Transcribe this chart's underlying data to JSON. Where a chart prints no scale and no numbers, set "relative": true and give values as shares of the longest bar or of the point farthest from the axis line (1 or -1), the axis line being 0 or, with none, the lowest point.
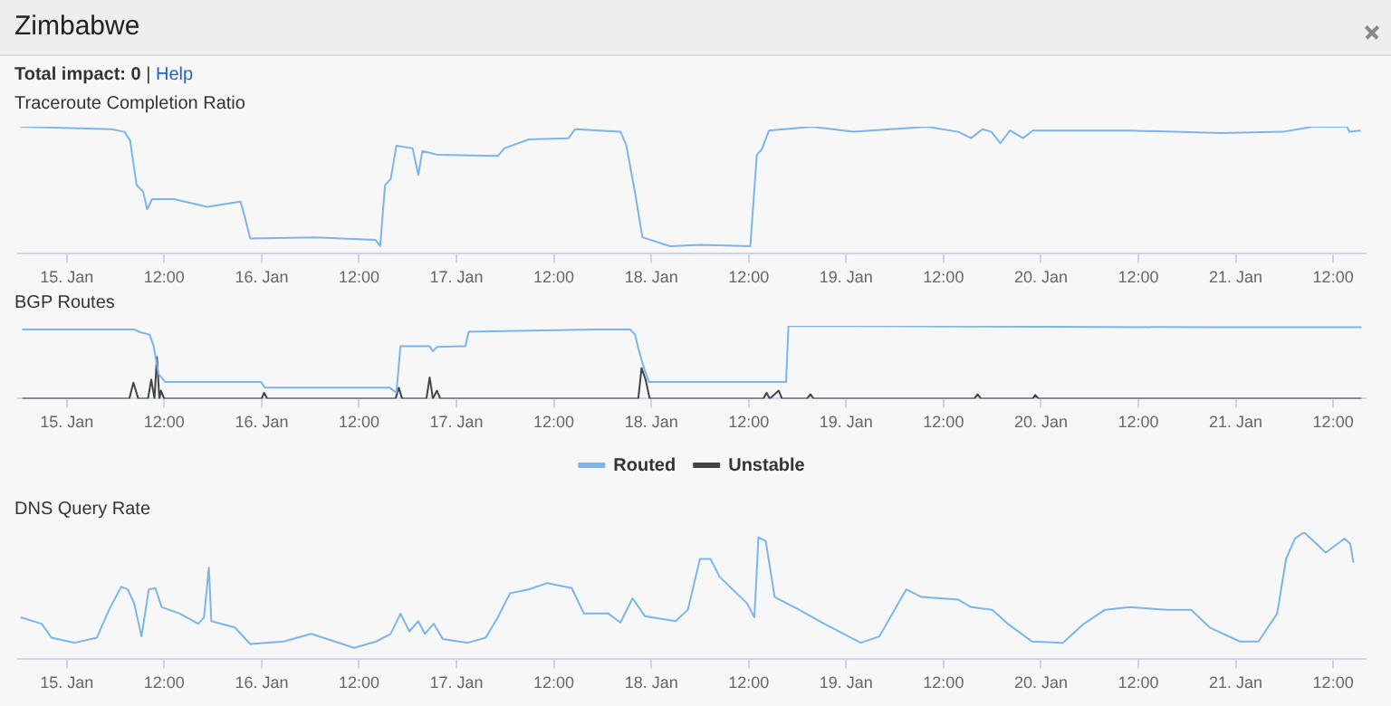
{
  "chart_data": [
    {
      "type": "other",
      "title": "Zimbabwe",
      "annotations": [
        "Total impact: 0",
        "|",
        "Help"
      ]
    },
    {
      "type": "line",
      "title": "Traceroute Completion Ratio",
      "relative": true,
      "grid": false,
      "legend": false,
      "marker": "none",
      "xlim": [
        "--01-14T18:00",
        "--01-21T16:00"
      ],
      "xticks": [
        {
          "value": "--01-15T00:00",
          "label": "15. Jan"
        },
        {
          "value": "--01-15T12:00",
          "label": "12:00"
        },
        {
          "value": "--01-16T00:00",
          "label": "16. Jan"
        },
        {
          "value": "--01-16T12:00",
          "label": "12:00"
        },
        {
          "value": "--01-17T00:00",
          "label": "17. Jan"
        },
        {
          "value": "--01-17T12:00",
          "label": "12:00"
        },
        {
          "value": "--01-18T00:00",
          "label": "18. Jan"
        },
        {
          "value": "--01-18T12:00",
          "label": "12:00"
        },
        {
          "value": "--01-19T00:00",
          "label": "19. Jan"
        },
        {
          "value": "--01-19T12:00",
          "label": "12:00"
        },
        {
          "value": "--01-20T00:00",
          "label": "20. Jan"
        },
        {
          "value": "--01-20T12:00",
          "label": "12:00"
        },
        {
          "value": "--01-21T00:00",
          "label": "21. Jan"
        },
        {
          "value": "--01-21T12:00",
          "label": "12:00"
        }
      ],
      "series": [
        {
          "color": "#7cb5ec",
          "x": [
            "--01-14T18:18",
            "--01-15T05:30",
            "--01-15T07:06",
            "--01-15T07:48",
            "--01-15T08:36",
            "--01-15T09:24",
            "--01-15T09:54",
            "--01-15T10:30",
            "--01-15T13:12",
            "--01-15T17:18",
            "--01-15T21:24",
            "--01-15T21:48",
            "--01-15T22:36",
            "--01-16T06:30",
            "--01-16T14:00",
            "--01-16T14:36",
            "--01-16T15:12",
            "--01-16T15:54",
            "--01-16T16:36",
            "--01-16T18:36",
            "--01-16T19:18",
            "--01-16T19:48",
            "--01-16T21:36",
            "--01-17T05:06",
            "--01-17T05:54",
            "--01-17T08:54",
            "--01-17T13:48",
            "--01-17T14:36",
            "--01-17T20:12",
            "--01-17T20:54",
            "--01-17T22:00",
            "--01-17T22:54",
            "--01-18T02:18",
            "--01-18T06:00",
            "--01-18T12:12",
            "--01-18T13:00",
            "--01-18T13:36",
            "--01-18T14:30",
            "--01-18T19:48",
            "--01-19T00:54",
            "--01-19T10:00",
            "--01-19T13:48",
            "--01-19T15:24",
            "--01-19T16:48",
            "--01-19T17:54",
            "--01-19T19:00",
            "--01-19T20:12",
            "--01-19T21:48",
            "--01-19T23:00",
            "--01-20T10:54",
            "--01-20T22:12",
            "--01-21T05:48",
            "--01-21T09:30",
            "--01-21T13:42",
            "--01-21T14:00",
            "--01-21T15:24"
          ],
          "values": [
            1.0,
            0.98,
            0.96,
            0.89,
            0.54,
            0.49,
            0.35,
            0.43,
            0.43,
            0.37,
            0.41,
            0.32,
            0.12,
            0.13,
            0.11,
            0.06,
            0.54,
            0.59,
            0.85,
            0.83,
            0.62,
            0.81,
            0.78,
            0.77,
            0.83,
            0.9,
            0.91,
            0.98,
            0.96,
            0.86,
            0.48,
            0.13,
            0.06,
            0.07,
            0.06,
            0.78,
            0.82,
            0.97,
            1.0,
            0.96,
            1.0,
            0.96,
            0.91,
            0.98,
            0.96,
            0.87,
            0.97,
            0.91,
            0.97,
            0.97,
            0.95,
            0.96,
            1.0,
            1.0,
            0.96,
            0.97
          ]
        }
      ]
    },
    {
      "type": "line",
      "title": "BGP Routes",
      "relative": true,
      "grid": false,
      "legend": "bottom",
      "marker": "none",
      "xlim": [
        "--01-14T18:00",
        "--01-21T16:00"
      ],
      "xticks": [
        {
          "value": "--01-15T00:00",
          "label": "15. Jan"
        },
        {
          "value": "--01-15T12:00",
          "label": "12:00"
        },
        {
          "value": "--01-16T00:00",
          "label": "16. Jan"
        },
        {
          "value": "--01-16T12:00",
          "label": "12:00"
        },
        {
          "value": "--01-17T00:00",
          "label": "17. Jan"
        },
        {
          "value": "--01-17T12:00",
          "label": "12:00"
        },
        {
          "value": "--01-18T00:00",
          "label": "18. Jan"
        },
        {
          "value": "--01-18T12:00",
          "label": "12:00"
        },
        {
          "value": "--01-19T00:00",
          "label": "19. Jan"
        },
        {
          "value": "--01-19T12:00",
          "label": "12:00"
        },
        {
          "value": "--01-20T00:00",
          "label": "20. Jan"
        },
        {
          "value": "--01-20T12:00",
          "label": "12:00"
        },
        {
          "value": "--01-21T00:00",
          "label": "21. Jan"
        },
        {
          "value": "--01-21T12:00",
          "label": "12:00"
        }
      ],
      "series": [
        {
          "name": "Routed",
          "color": "#7cb5ec",
          "x": [
            "--01-14T18:30",
            "--01-15T08:18",
            "--01-15T09:06",
            "--01-15T10:12",
            "--01-15T10:42",
            "--01-15T11:18",
            "--01-15T12:06",
            "--01-15T23:54",
            "--01-16T00:24",
            "--01-16T15:48",
            "--01-16T16:36",
            "--01-16T17:06",
            "--01-16T20:42",
            "--01-16T21:06",
            "--01-16T21:36",
            "--01-17T01:06",
            "--01-17T01:30",
            "--01-17T17:00",
            "--01-17T21:24",
            "--01-17T22:00",
            "--01-17T22:30",
            "--01-17T23:06",
            "--01-17T23:42",
            "--01-18T16:36",
            "--01-18T16:54",
            "--01-20T21:12",
            "--01-21T15:30"
          ],
          "values": [
            0.95,
            0.95,
            0.91,
            0.88,
            0.72,
            0.34,
            0.23,
            0.23,
            0.15,
            0.15,
            0.08,
            0.72,
            0.72,
            0.65,
            0.71,
            0.72,
            0.92,
            0.95,
            0.95,
            0.88,
            0.65,
            0.42,
            0.23,
            0.23,
            1.0,
            0.98,
            0.98
          ]
        },
        {
          "name": "Unstable",
          "color": "#434348",
          "x": [
            "--01-14T18:30",
            "--01-15T07:42",
            "--01-15T08:12",
            "--01-15T08:48",
            "--01-15T10:00",
            "--01-15T10:24",
            "--01-15T10:48",
            "--01-15T11:06",
            "--01-15T11:24",
            "--01-15T11:36",
            "--01-15T12:00",
            "--01-16T00:00",
            "--01-16T00:18",
            "--01-16T00:42",
            "--01-16T16:30",
            "--01-16T16:54",
            "--01-16T17:18",
            "--01-16T20:18",
            "--01-16T20:42",
            "--01-16T21:06",
            "--01-16T21:36",
            "--01-16T22:00",
            "--01-17T22:24",
            "--01-17T22:48",
            "--01-17T23:18",
            "--01-17T23:48",
            "--01-18T13:48",
            "--01-18T14:12",
            "--01-18T14:36",
            "--01-18T15:42",
            "--01-18T16:06",
            "--01-18T19:12",
            "--01-18T19:36",
            "--01-18T20:00",
            "--01-19T15:48",
            "--01-19T16:12",
            "--01-19T16:36",
            "--01-19T23:00",
            "--01-19T23:18",
            "--01-19T23:42",
            "--01-21T15:30"
          ],
          "values": [
            0,
            0,
            0.22,
            0,
            0,
            0.26,
            0,
            0.57,
            0,
            0.11,
            0,
            0,
            0.08,
            0,
            0,
            0.15,
            0,
            0,
            0.29,
            0,
            0.11,
            0,
            0,
            0.42,
            0.26,
            0,
            0,
            0.08,
            0,
            0.11,
            0,
            0,
            0.06,
            0,
            0,
            0.06,
            0,
            0,
            0.05,
            0,
            0
          ]
        }
      ]
    },
    {
      "type": "line",
      "title": "DNS Query Rate",
      "relative": true,
      "grid": false,
      "legend": false,
      "marker": "none",
      "xlim": [
        "--01-14T18:00",
        "--01-21T16:00"
      ],
      "xticks": [
        {
          "value": "--01-15T00:00",
          "label": "15. Jan"
        },
        {
          "value": "--01-15T12:00",
          "label": "12:00"
        },
        {
          "value": "--01-16T00:00",
          "label": "16. Jan"
        },
        {
          "value": "--01-16T12:00",
          "label": "12:00"
        },
        {
          "value": "--01-17T00:00",
          "label": "17. Jan"
        },
        {
          "value": "--01-17T12:00",
          "label": "12:00"
        },
        {
          "value": "--01-18T00:00",
          "label": "18. Jan"
        },
        {
          "value": "--01-18T12:00",
          "label": "12:00"
        },
        {
          "value": "--01-19T00:00",
          "label": "19. Jan"
        },
        {
          "value": "--01-19T12:00",
          "label": "12:00"
        },
        {
          "value": "--01-20T00:00",
          "label": "20. Jan"
        },
        {
          "value": "--01-20T12:00",
          "label": "12:00"
        },
        {
          "value": "--01-21T00:00",
          "label": "21. Jan"
        },
        {
          "value": "--01-21T12:00",
          "label": "12:00"
        }
      ],
      "series": [
        {
          "color": "#7cb5ec",
          "x": [
            "--01-14T18:18",
            "--01-14T20:54",
            "--01-14T22:06",
            "--01-15T01:00",
            "--01-15T03:42",
            "--01-15T05:12",
            "--01-15T06:42",
            "--01-15T07:30",
            "--01-15T08:18",
            "--01-15T09:12",
            "--01-15T10:06",
            "--01-15T10:54",
            "--01-15T11:42",
            "--01-15T13:54",
            "--01-15T16:12",
            "--01-15T16:54",
            "--01-15T17:30",
            "--01-15T17:48",
            "--01-15T20:42",
            "--01-15T22:36",
            "--01-16T02:42",
            "--01-16T06:06",
            "--01-16T11:24",
            "--01-16T14:06",
            "--01-16T15:54",
            "--01-16T17:06",
            "--01-16T18:12",
            "--01-16T19:18",
            "--01-16T20:06",
            "--01-16T21:12",
            "--01-16T22:18",
            "--01-17T01:24",
            "--01-17T03:36",
            "--01-17T05:06",
            "--01-17T06:36",
            "--01-17T08:54",
            "--01-17T11:12",
            "--01-17T14:12",
            "--01-17T15:42",
            "--01-17T18:42",
            "--01-17T20:12",
            "--01-17T21:42",
            "--01-17T23:12",
            "--01-18T03:00",
            "--01-18T04:30",
            "--01-18T06:00",
            "--01-18T07:18",
            "--01-18T08:24",
            "--01-18T11:48",
            "--01-18T12:42",
            "--01-18T13:12",
            "--01-18T14:06",
            "--01-18T15:12",
            "--01-18T18:12",
            "--01-18T21:18",
            "--01-19T01:48",
            "--01-19T04:06",
            "--01-19T07:24",
            "--01-19T09:18",
            "--01-19T13:48",
            "--01-19T15:24",
            "--01-19T18:00",
            "--01-19T19:54",
            "--01-19T22:54",
            "--01-20T02:42",
            "--01-20T05:18",
            "--01-20T07:54",
            "--01-20T10:54",
            "--01-20T15:30",
            "--01-20T18:30",
            "--01-20T20:48",
            "--01-21T00:30",
            "--01-21T02:48",
            "--01-21T05:06",
            "--01-21T06:12",
            "--01-21T07:18",
            "--01-21T08:24",
            "--01-21T11:06",
            "--01-21T13:24",
            "--01-21T14:06",
            "--01-21T14:30"
          ],
          "values": [
            0.33,
            0.28,
            0.17,
            0.13,
            0.17,
            0.39,
            0.57,
            0.55,
            0.44,
            0.18,
            0.55,
            0.56,
            0.41,
            0.36,
            0.28,
            0.33,
            0.72,
            0.3,
            0.25,
            0.12,
            0.14,
            0.2,
            0.09,
            0.14,
            0.2,
            0.36,
            0.22,
            0.3,
            0.2,
            0.28,
            0.16,
            0.13,
            0.17,
            0.33,
            0.52,
            0.55,
            0.6,
            0.56,
            0.36,
            0.36,
            0.29,
            0.48,
            0.34,
            0.3,
            0.39,
            0.79,
            0.79,
            0.65,
            0.44,
            0.33,
            0.96,
            0.93,
            0.49,
            0.39,
            0.28,
            0.13,
            0.18,
            0.55,
            0.49,
            0.47,
            0.41,
            0.39,
            0.28,
            0.14,
            0.13,
            0.28,
            0.39,
            0.41,
            0.39,
            0.39,
            0.25,
            0.14,
            0.14,
            0.36,
            0.79,
            0.95,
            1.0,
            0.84,
            0.95,
            0.91,
            0.76
          ]
        }
      ]
    }
  ]
}
